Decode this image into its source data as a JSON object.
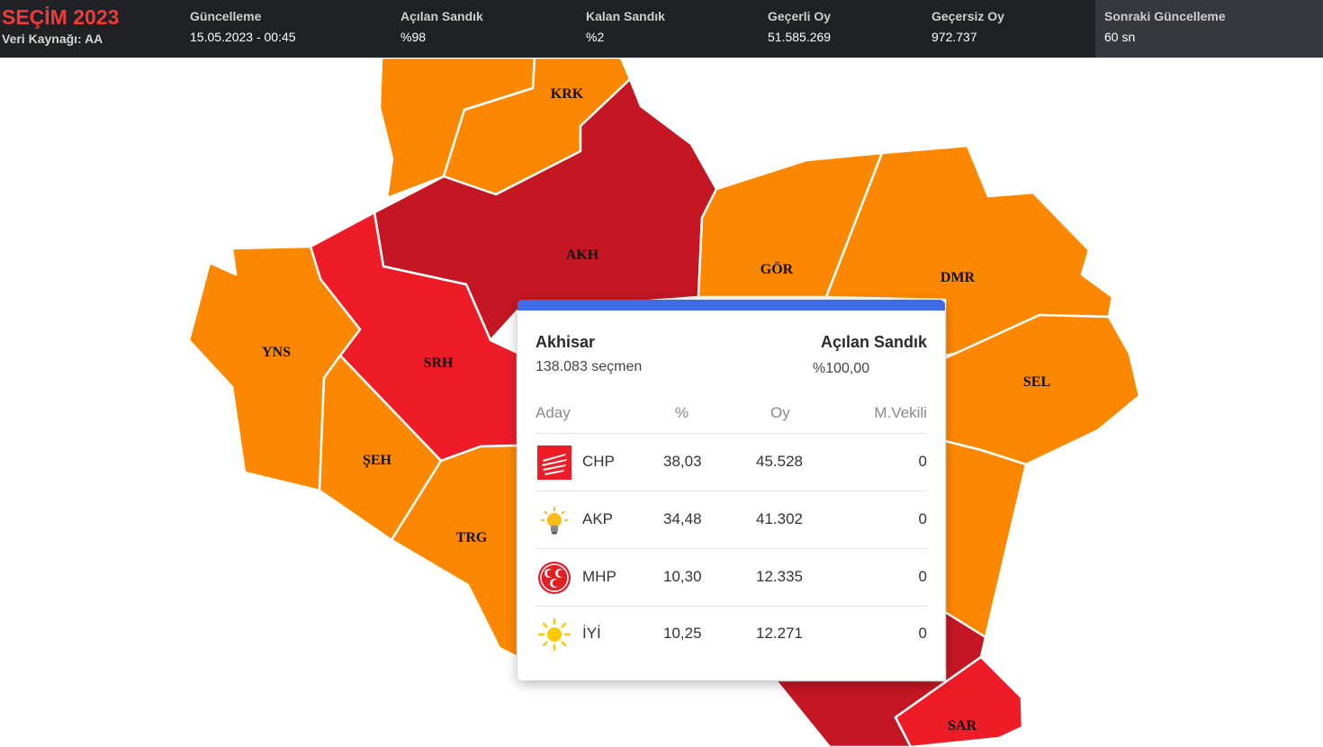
{
  "header": {
    "title": "SEÇİM 2023",
    "source": "Veri Kaynağı: AA",
    "stats": [
      {
        "label": "Güncelleme",
        "value": "15.05.2023 - 00:45"
      },
      {
        "label": "Açılan Sandık",
        "value": "%98"
      },
      {
        "label": "Kalan Sandık",
        "value": "%2"
      },
      {
        "label": "Geçerli Oy",
        "value": "51.585.269"
      },
      {
        "label": "Geçersiz Oy",
        "value": "972.737"
      }
    ],
    "next_update": {
      "label": "Sonraki Güncelleme",
      "value": "60 sn"
    }
  },
  "colors": {
    "chp_dark": "#c41623",
    "chp_light": "#ed1c27",
    "akp": "#fd8800",
    "accent": "#3d6ce6"
  },
  "map": {
    "labels": {
      "krk": "KRK",
      "akh": "AKH",
      "gor": "GÖR",
      "dmr": "DMR",
      "yns": "YNS",
      "srh": "SRH",
      "sel": "SEL",
      "seh": "ŞEH",
      "trg": "TRG",
      "sar": "SAR"
    }
  },
  "tooltip": {
    "district": "Akhisar",
    "voters": "138.083 seçmen",
    "opened_label": "Açılan Sandık",
    "opened_value": "%100,00",
    "columns": {
      "candidate": "Aday",
      "percent": "%",
      "votes": "Oy",
      "mps": "M.Vekili"
    },
    "rows": [
      {
        "party": "CHP",
        "logo": "chp-logo-icon",
        "percent": "38,03",
        "votes": "45.528",
        "mps": "0"
      },
      {
        "party": "AKP",
        "logo": "akp-bulb-icon",
        "percent": "34,48",
        "votes": "41.302",
        "mps": "0"
      },
      {
        "party": "MHP",
        "logo": "mhp-crescents-icon",
        "percent": "10,30",
        "votes": "12.335",
        "mps": "0"
      },
      {
        "party": "İYİ",
        "logo": "iyi-sun-icon",
        "percent": "10,25",
        "votes": "12.271",
        "mps": "0"
      }
    ]
  }
}
